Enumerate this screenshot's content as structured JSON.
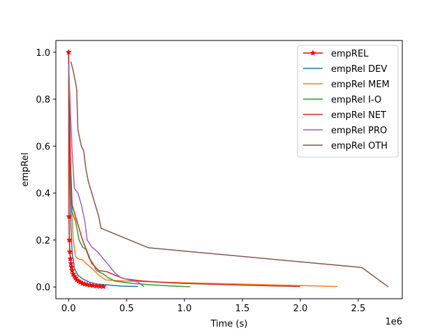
{
  "chart_data": {
    "type": "line",
    "title": "",
    "xlabel": "Time (s)",
    "ylabel": "empRel",
    "x_offset_label": "1e6",
    "xlim": [
      -110000,
      2880000
    ],
    "ylim": [
      -0.05,
      1.05
    ],
    "x_ticks": [
      0,
      500000,
      1000000,
      1500000,
      2000000,
      2500000
    ],
    "x_tick_labels": [
      "0.0",
      "0.5",
      "1.0",
      "1.5",
      "2.0",
      "2.5"
    ],
    "y_ticks": [
      0.0,
      0.2,
      0.4,
      0.6,
      0.8,
      1.0
    ],
    "y_tick_labels": [
      "0.0",
      "0.2",
      "0.4",
      "0.6",
      "0.8",
      "1.0"
    ],
    "grid": false,
    "legend_position": "top-right",
    "series": [
      {
        "name": "empREL",
        "color": "#ff0000",
        "marker": "star",
        "points": [
          [
            0,
            1.0
          ],
          [
            3000,
            0.3
          ],
          [
            6000,
            0.2
          ],
          [
            10000,
            0.15
          ],
          [
            15000,
            0.12
          ],
          [
            20000,
            0.1
          ],
          [
            25000,
            0.085
          ],
          [
            30000,
            0.07
          ],
          [
            40000,
            0.055
          ],
          [
            50000,
            0.045
          ],
          [
            60000,
            0.038
          ],
          [
            70000,
            0.03
          ],
          [
            85000,
            0.025
          ],
          [
            100000,
            0.02
          ],
          [
            120000,
            0.015
          ],
          [
            140000,
            0.012
          ],
          [
            160000,
            0.01
          ],
          [
            185000,
            0.008
          ],
          [
            210000,
            0.006
          ],
          [
            240000,
            0.004
          ],
          [
            270000,
            0.003
          ],
          [
            300000,
            0.002
          ]
        ]
      },
      {
        "name": "empRel DEV",
        "color": "#1f77b4",
        "points": [
          [
            0,
            1.0
          ],
          [
            10000,
            0.5
          ],
          [
            20000,
            0.25
          ],
          [
            30000,
            0.15
          ],
          [
            50000,
            0.08
          ],
          [
            80000,
            0.05
          ],
          [
            120000,
            0.035
          ],
          [
            180000,
            0.02
          ],
          [
            250000,
            0.012
          ],
          [
            350000,
            0.008
          ],
          [
            450000,
            0.004
          ],
          [
            600000,
            0.002
          ]
        ]
      },
      {
        "name": "empRel MEM",
        "color": "#ff7f0e",
        "points": [
          [
            0,
            0.95
          ],
          [
            20000,
            0.4
          ],
          [
            40000,
            0.2
          ],
          [
            60000,
            0.13
          ],
          [
            80000,
            0.12
          ],
          [
            120000,
            0.115
          ],
          [
            150000,
            0.1
          ],
          [
            200000,
            0.08
          ],
          [
            260000,
            0.05
          ],
          [
            320000,
            0.03
          ],
          [
            500000,
            0.025
          ],
          [
            1000000,
            0.018
          ],
          [
            1500000,
            0.012
          ],
          [
            2000000,
            0.006
          ],
          [
            2320000,
            0.002
          ]
        ]
      },
      {
        "name": "empRel I-O",
        "color": "#2ca02c",
        "points": [
          [
            0,
            0.95
          ],
          [
            15000,
            0.5
          ],
          [
            30000,
            0.32
          ],
          [
            60000,
            0.28
          ],
          [
            90000,
            0.2
          ],
          [
            120000,
            0.17
          ],
          [
            150000,
            0.16
          ],
          [
            180000,
            0.12
          ],
          [
            210000,
            0.1
          ],
          [
            240000,
            0.07
          ],
          [
            300000,
            0.055
          ],
          [
            340000,
            0.04
          ],
          [
            400000,
            0.025
          ],
          [
            550000,
            0.015
          ],
          [
            750000,
            0.008
          ],
          [
            900000,
            0.004
          ],
          [
            1050000,
            0.001
          ]
        ]
      },
      {
        "name": "empRel NET",
        "color": "#d62728",
        "points": [
          [
            0,
            1.0
          ],
          [
            15000,
            0.55
          ],
          [
            30000,
            0.35
          ],
          [
            60000,
            0.3
          ],
          [
            90000,
            0.25
          ],
          [
            120000,
            0.2
          ],
          [
            160000,
            0.15
          ],
          [
            200000,
            0.1
          ],
          [
            260000,
            0.07
          ],
          [
            330000,
            0.065
          ],
          [
            400000,
            0.05
          ],
          [
            480000,
            0.035
          ],
          [
            560000,
            0.03
          ],
          [
            650000,
            0.025
          ],
          [
            800000,
            0.02
          ],
          [
            1000000,
            0.015
          ],
          [
            1500000,
            0.008
          ],
          [
            2000000,
            0.002
          ]
        ]
      },
      {
        "name": "empRel PRO",
        "color": "#9467bd",
        "points": [
          [
            0,
            0.95
          ],
          [
            15000,
            0.75
          ],
          [
            30000,
            0.58
          ],
          [
            50000,
            0.42
          ],
          [
            80000,
            0.4
          ],
          [
            110000,
            0.35
          ],
          [
            140000,
            0.28
          ],
          [
            160000,
            0.2
          ],
          [
            200000,
            0.17
          ],
          [
            250000,
            0.15
          ],
          [
            300000,
            0.12
          ],
          [
            350000,
            0.09
          ],
          [
            400000,
            0.06
          ],
          [
            450000,
            0.04
          ],
          [
            520000,
            0.03
          ],
          [
            600000,
            0.02
          ],
          [
            650000,
            0.002
          ]
        ]
      },
      {
        "name": "empRel OTH",
        "color": "#8c564b",
        "points": [
          [
            20000,
            0.96
          ],
          [
            40000,
            0.92
          ],
          [
            60000,
            0.87
          ],
          [
            70000,
            0.84
          ],
          [
            80000,
            0.67
          ],
          [
            110000,
            0.6
          ],
          [
            130000,
            0.58
          ],
          [
            150000,
            0.5
          ],
          [
            170000,
            0.45
          ],
          [
            200000,
            0.4
          ],
          [
            230000,
            0.35
          ],
          [
            260000,
            0.3
          ],
          [
            280000,
            0.25
          ],
          [
            690000,
            0.167
          ],
          [
            2530000,
            0.083
          ],
          [
            2760000,
            0.0
          ]
        ]
      }
    ]
  }
}
